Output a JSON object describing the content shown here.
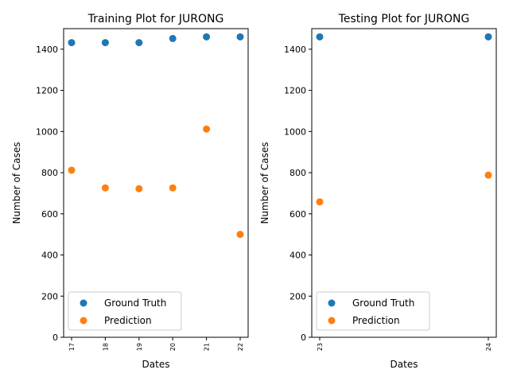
{
  "colors": {
    "ground_truth": "#1f77b4",
    "prediction": "#ff7f0e",
    "axis": "#000000",
    "legend_border": "#cccccc"
  },
  "chart_data": [
    {
      "type": "scatter",
      "title": "Training Plot for JURONG",
      "xlabel": "Dates",
      "ylabel": "Number of Cases",
      "x": [
        "17",
        "18",
        "19",
        "20",
        "21",
        "22"
      ],
      "ylim": [
        0,
        1500
      ],
      "yticks": [
        "0",
        "200",
        "400",
        "600",
        "800",
        "1000",
        "1200",
        "1400"
      ],
      "series": [
        {
          "name": "Ground Truth",
          "values": [
            1432,
            1432,
            1432,
            1452,
            1460,
            1460
          ]
        },
        {
          "name": "Prediction",
          "values": [
            812,
            726,
            722,
            726,
            1012,
            500
          ]
        }
      ],
      "legend": "lower-left",
      "grid": false
    },
    {
      "type": "scatter",
      "title": "Testing Plot for JURONG",
      "xlabel": "Dates",
      "ylabel": "Number of Cases",
      "x": [
        "23",
        "24"
      ],
      "ylim": [
        0,
        1500
      ],
      "yticks": [
        "0",
        "200",
        "400",
        "600",
        "800",
        "1000",
        "1200",
        "1400"
      ],
      "series": [
        {
          "name": "Ground Truth",
          "values": [
            1460,
            1460
          ]
        },
        {
          "name": "Prediction",
          "values": [
            658,
            788
          ]
        }
      ],
      "legend": "lower-left",
      "grid": false
    }
  ]
}
